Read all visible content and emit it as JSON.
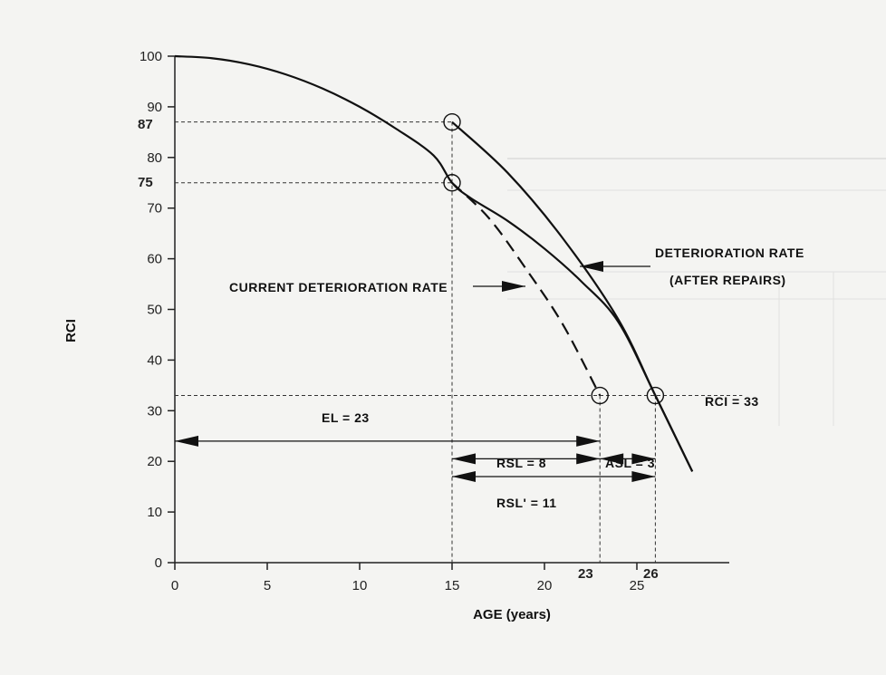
{
  "chart_data": {
    "type": "line",
    "xlabel": "AGE (years)",
    "ylabel": "RCI",
    "xlim": [
      0,
      30
    ],
    "ylim": [
      0,
      100
    ],
    "x_ticks": [
      0,
      5,
      10,
      15,
      20,
      25
    ],
    "y_ticks": [
      0,
      10,
      20,
      30,
      40,
      50,
      60,
      70,
      80,
      90,
      100
    ],
    "series": [
      {
        "style": "solid",
        "x": [
          0,
          2,
          4,
          6,
          8,
          10,
          12,
          14,
          15,
          16,
          18,
          20,
          22,
          24,
          26,
          28
        ],
        "y": [
          100,
          99.6,
          98.4,
          96.4,
          93.6,
          90,
          85.6,
          80.4,
          75,
          72,
          67.5,
          62,
          55.5,
          47.5,
          33,
          18
        ]
      },
      {
        "style": "dashed",
        "x": [
          15,
          17,
          19,
          21,
          23
        ],
        "y": [
          75,
          68,
          58,
          47,
          33
        ]
      },
      {
        "style": "solid",
        "x": [
          15,
          18,
          21,
          24,
          26,
          28
        ],
        "y": [
          87,
          77,
          64,
          48,
          33,
          18
        ]
      }
    ],
    "highlight_points": [
      {
        "x": 15,
        "y": 87
      },
      {
        "x": 15,
        "y": 75
      },
      {
        "x": 23,
        "y": 33
      },
      {
        "x": 26,
        "y": 33
      }
    ],
    "special_ticks": {
      "y": [
        "87",
        "75"
      ],
      "x": [
        "23",
        "26"
      ]
    },
    "annotations": {
      "deterioration_after_line1": "DETERIORATION RATE",
      "deterioration_after_line2": "(AFTER REPAIRS)",
      "current_rate": "CURRENT DETERIORATION RATE",
      "rci_33": "RCI = 33",
      "el": "EL = 23",
      "rsl": "RSL = 8",
      "asl": "ASL = 3",
      "rsl_prime": "RSL' = 11"
    },
    "grid": false
  }
}
